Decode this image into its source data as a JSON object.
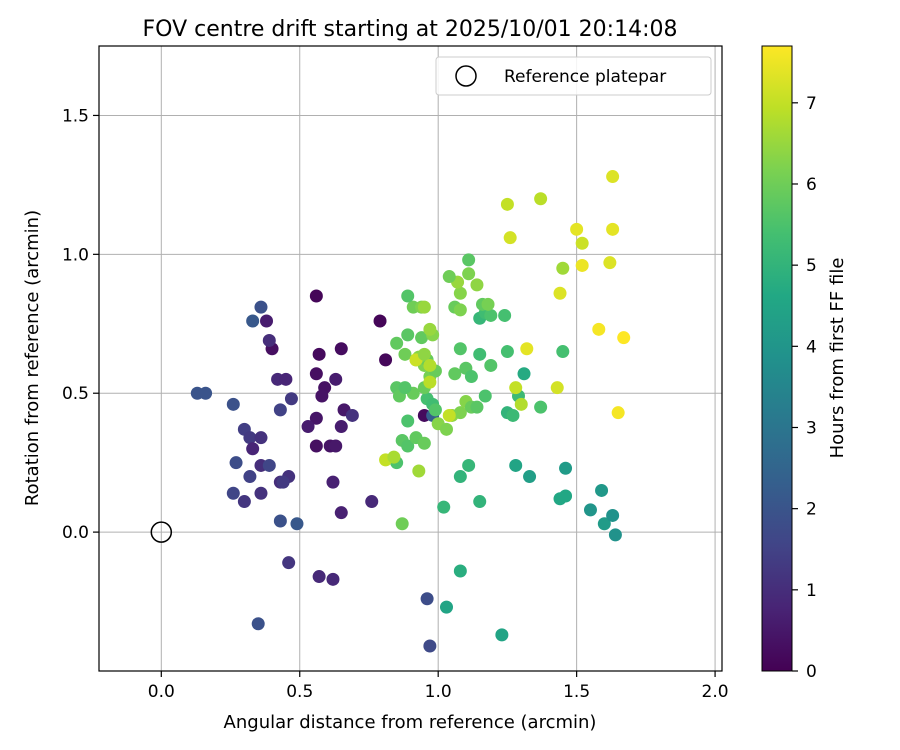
{
  "chart_data": {
    "type": "scatter",
    "title": "FOV centre drift starting at 2025/10/01 20:14:08",
    "xlabel": "Angular distance from reference (arcmin)",
    "ylabel": "Rotation from reference (arcmin)",
    "xlim": [
      -0.225,
      2.025
    ],
    "ylim": [
      -0.5,
      1.75
    ],
    "xticks": [
      0.0,
      0.5,
      1.0,
      1.5,
      2.0
    ],
    "xtick_labels": [
      "0.0",
      "0.5",
      "1.0",
      "1.5",
      "2.0"
    ],
    "yticks": [
      0.0,
      0.5,
      1.0,
      1.5
    ],
    "ytick_labels": [
      "0.0",
      "0.5",
      "1.0",
      "1.5"
    ],
    "grid": true,
    "legend": {
      "position": "top-right",
      "entries": [
        {
          "label": "Reference platepar",
          "marker": "open-circle"
        }
      ]
    },
    "reference_point": {
      "x": 0.0,
      "y": 0.0
    },
    "colorbar": {
      "label": "Hours from first FF file",
      "range": [
        0,
        7.7
      ],
      "ticks": [
        0,
        1,
        2,
        3,
        4,
        5,
        6,
        7
      ],
      "tick_labels": [
        "0",
        "1",
        "2",
        "3",
        "4",
        "5",
        "6",
        "7"
      ],
      "colormap": "viridis"
    },
    "points": [
      {
        "x": 0.56,
        "y": 0.85,
        "t": 0.1
      },
      {
        "x": 0.79,
        "y": 0.76,
        "t": 0.1
      },
      {
        "x": 0.81,
        "y": 0.62,
        "t": 0.15
      },
      {
        "x": 0.57,
        "y": 0.64,
        "t": 0.2
      },
      {
        "x": 0.65,
        "y": 0.66,
        "t": 0.25
      },
      {
        "x": 0.56,
        "y": 0.57,
        "t": 0.3
      },
      {
        "x": 0.59,
        "y": 0.52,
        "t": 0.35
      },
      {
        "x": 0.58,
        "y": 0.49,
        "t": 0.4
      },
      {
        "x": 0.56,
        "y": 0.41,
        "t": 0.45
      },
      {
        "x": 0.66,
        "y": 0.44,
        "t": 0.5
      },
      {
        "x": 0.56,
        "y": 0.31,
        "t": 0.3
      },
      {
        "x": 0.61,
        "y": 0.31,
        "t": 0.4
      },
      {
        "x": 0.63,
        "y": 0.31,
        "t": 0.5
      },
      {
        "x": 0.65,
        "y": 0.38,
        "t": 0.6
      },
      {
        "x": 0.63,
        "y": 0.55,
        "t": 0.6
      },
      {
        "x": 0.53,
        "y": 0.38,
        "t": 0.6
      },
      {
        "x": 0.62,
        "y": 0.18,
        "t": 0.7
      },
      {
        "x": 0.65,
        "y": 0.07,
        "t": 0.7
      },
      {
        "x": 0.57,
        "y": -0.16,
        "t": 0.9
      },
      {
        "x": 0.62,
        "y": -0.17,
        "t": 0.9
      },
      {
        "x": 0.76,
        "y": 0.11,
        "t": 0.9
      },
      {
        "x": 0.69,
        "y": 0.42,
        "t": 1.1
      },
      {
        "x": 0.95,
        "y": 0.42,
        "t": 0.2
      },
      {
        "x": 0.4,
        "y": 0.66,
        "t": 0.3
      },
      {
        "x": 0.38,
        "y": 0.76,
        "t": 0.6
      },
      {
        "x": 0.39,
        "y": 0.69,
        "t": 1.0
      },
      {
        "x": 0.42,
        "y": 0.55,
        "t": 0.9
      },
      {
        "x": 0.45,
        "y": 0.55,
        "t": 0.8
      },
      {
        "x": 0.47,
        "y": 0.48,
        "t": 1.3
      },
      {
        "x": 0.43,
        "y": 0.44,
        "t": 1.5
      },
      {
        "x": 0.3,
        "y": 0.37,
        "t": 1.4
      },
      {
        "x": 0.32,
        "y": 0.34,
        "t": 1.3
      },
      {
        "x": 0.36,
        "y": 0.34,
        "t": 1.1
      },
      {
        "x": 0.33,
        "y": 0.3,
        "t": 0.8
      },
      {
        "x": 0.36,
        "y": 0.24,
        "t": 1.0
      },
      {
        "x": 0.39,
        "y": 0.24,
        "t": 1.6
      },
      {
        "x": 0.43,
        "y": 0.18,
        "t": 1.0
      },
      {
        "x": 0.46,
        "y": 0.2,
        "t": 1.1
      },
      {
        "x": 0.44,
        "y": 0.18,
        "t": 1.3
      },
      {
        "x": 0.32,
        "y": 0.2,
        "t": 1.5
      },
      {
        "x": 0.36,
        "y": 0.14,
        "t": 1.1
      },
      {
        "x": 0.3,
        "y": 0.11,
        "t": 1.2
      },
      {
        "x": 0.26,
        "y": 0.14,
        "t": 1.6
      },
      {
        "x": 0.27,
        "y": 0.25,
        "t": 1.8
      },
      {
        "x": 0.26,
        "y": 0.46,
        "t": 1.9
      },
      {
        "x": 0.13,
        "y": 0.5,
        "t": 2.0
      },
      {
        "x": 0.16,
        "y": 0.5,
        "t": 2.0
      },
      {
        "x": 0.36,
        "y": 0.81,
        "t": 1.9
      },
      {
        "x": 0.33,
        "y": 0.76,
        "t": 2.1
      },
      {
        "x": 0.43,
        "y": 0.04,
        "t": 1.9
      },
      {
        "x": 0.49,
        "y": 0.03,
        "t": 2.1
      },
      {
        "x": 0.46,
        "y": -0.11,
        "t": 1.2
      },
      {
        "x": 0.35,
        "y": -0.33,
        "t": 1.9
      },
      {
        "x": 0.96,
        "y": -0.24,
        "t": 1.8
      },
      {
        "x": 0.97,
        "y": -0.41,
        "t": 1.7
      },
      {
        "x": 0.98,
        "y": 0.42,
        "t": 2.3
      },
      {
        "x": 1.03,
        "y": -0.27,
        "t": 4.5
      },
      {
        "x": 1.08,
        "y": -0.14,
        "t": 4.8
      },
      {
        "x": 1.23,
        "y": -0.37,
        "t": 4.5
      },
      {
        "x": 0.87,
        "y": 0.03,
        "t": 6.0
      },
      {
        "x": 1.02,
        "y": 0.09,
        "t": 5.1
      },
      {
        "x": 1.08,
        "y": 0.2,
        "t": 5.0
      },
      {
        "x": 1.11,
        "y": 0.24,
        "t": 5.1
      },
      {
        "x": 1.15,
        "y": 0.11,
        "t": 5.0
      },
      {
        "x": 1.28,
        "y": 0.24,
        "t": 4.5
      },
      {
        "x": 1.33,
        "y": 0.2,
        "t": 4.3
      },
      {
        "x": 1.44,
        "y": 0.12,
        "t": 4.6
      },
      {
        "x": 1.46,
        "y": 0.13,
        "t": 4.6
      },
      {
        "x": 1.46,
        "y": 0.23,
        "t": 4.2
      },
      {
        "x": 1.55,
        "y": 0.08,
        "t": 4.0
      },
      {
        "x": 1.59,
        "y": 0.15,
        "t": 4.1
      },
      {
        "x": 1.6,
        "y": 0.03,
        "t": 4.2
      },
      {
        "x": 1.63,
        "y": 0.06,
        "t": 3.9
      },
      {
        "x": 1.64,
        "y": -0.01,
        "t": 3.9
      },
      {
        "x": 0.85,
        "y": 0.25,
        "t": 5.5
      },
      {
        "x": 0.87,
        "y": 0.33,
        "t": 5.7
      },
      {
        "x": 0.89,
        "y": 0.31,
        "t": 5.6
      },
      {
        "x": 0.92,
        "y": 0.34,
        "t": 5.8
      },
      {
        "x": 0.95,
        "y": 0.32,
        "t": 5.9
      },
      {
        "x": 0.89,
        "y": 0.4,
        "t": 5.5
      },
      {
        "x": 0.91,
        "y": 0.5,
        "t": 5.9
      },
      {
        "x": 0.85,
        "y": 0.52,
        "t": 5.7
      },
      {
        "x": 0.86,
        "y": 0.49,
        "t": 5.8
      },
      {
        "x": 0.88,
        "y": 0.52,
        "t": 5.6
      },
      {
        "x": 0.96,
        "y": 0.48,
        "t": 5.4
      },
      {
        "x": 0.98,
        "y": 0.46,
        "t": 5.3
      },
      {
        "x": 0.99,
        "y": 0.44,
        "t": 5.6
      },
      {
        "x": 0.95,
        "y": 0.52,
        "t": 5.9
      },
      {
        "x": 0.97,
        "y": 0.56,
        "t": 6.1
      },
      {
        "x": 0.95,
        "y": 0.6,
        "t": 6.2
      },
      {
        "x": 0.96,
        "y": 0.62,
        "t": 5.9
      },
      {
        "x": 0.93,
        "y": 0.63,
        "t": 6.3
      },
      {
        "x": 0.92,
        "y": 0.62,
        "t": 6.4
      },
      {
        "x": 0.88,
        "y": 0.64,
        "t": 6.0
      },
      {
        "x": 0.85,
        "y": 0.68,
        "t": 5.8
      },
      {
        "x": 0.89,
        "y": 0.71,
        "t": 5.7
      },
      {
        "x": 0.94,
        "y": 0.7,
        "t": 5.8
      },
      {
        "x": 0.98,
        "y": 0.71,
        "t": 6.3
      },
      {
        "x": 0.97,
        "y": 0.73,
        "t": 6.5
      },
      {
        "x": 0.91,
        "y": 0.81,
        "t": 6.0
      },
      {
        "x": 0.94,
        "y": 0.81,
        "t": 6.2
      },
      {
        "x": 0.95,
        "y": 0.81,
        "t": 6.5
      },
      {
        "x": 0.89,
        "y": 0.85,
        "t": 5.6
      },
      {
        "x": 0.99,
        "y": 0.58,
        "t": 5.9
      },
      {
        "x": 1.0,
        "y": 0.39,
        "t": 6.3
      },
      {
        "x": 1.03,
        "y": 0.37,
        "t": 6.2
      },
      {
        "x": 1.05,
        "y": 0.42,
        "t": 6.4
      },
      {
        "x": 1.08,
        "y": 0.43,
        "t": 6.2
      },
      {
        "x": 1.1,
        "y": 0.47,
        "t": 6.3
      },
      {
        "x": 1.12,
        "y": 0.45,
        "t": 5.9
      },
      {
        "x": 1.14,
        "y": 0.45,
        "t": 5.7
      },
      {
        "x": 1.17,
        "y": 0.49,
        "t": 5.5
      },
      {
        "x": 1.06,
        "y": 0.57,
        "t": 5.8
      },
      {
        "x": 1.1,
        "y": 0.59,
        "t": 5.7
      },
      {
        "x": 1.12,
        "y": 0.56,
        "t": 5.5
      },
      {
        "x": 1.08,
        "y": 0.66,
        "t": 5.6
      },
      {
        "x": 1.15,
        "y": 0.64,
        "t": 5.3
      },
      {
        "x": 1.19,
        "y": 0.6,
        "t": 5.6
      },
      {
        "x": 1.25,
        "y": 0.65,
        "t": 5.4
      },
      {
        "x": 1.31,
        "y": 0.57,
        "t": 4.7
      },
      {
        "x": 1.29,
        "y": 0.49,
        "t": 5.2
      },
      {
        "x": 1.25,
        "y": 0.43,
        "t": 5.0
      },
      {
        "x": 1.27,
        "y": 0.42,
        "t": 5.2
      },
      {
        "x": 1.37,
        "y": 0.45,
        "t": 5.5
      },
      {
        "x": 1.45,
        "y": 0.65,
        "t": 5.4
      },
      {
        "x": 1.3,
        "y": 0.46,
        "t": 6.8
      },
      {
        "x": 1.28,
        "y": 0.52,
        "t": 7.0
      },
      {
        "x": 1.32,
        "y": 0.66,
        "t": 7.4
      },
      {
        "x": 1.43,
        "y": 0.52,
        "t": 7.2
      },
      {
        "x": 1.15,
        "y": 0.77,
        "t": 5.1
      },
      {
        "x": 1.17,
        "y": 0.79,
        "t": 5.3
      },
      {
        "x": 1.19,
        "y": 0.78,
        "t": 5.5
      },
      {
        "x": 1.16,
        "y": 0.82,
        "t": 5.8
      },
      {
        "x": 1.18,
        "y": 0.82,
        "t": 6.1
      },
      {
        "x": 1.24,
        "y": 0.78,
        "t": 5.4
      },
      {
        "x": 1.06,
        "y": 0.81,
        "t": 5.9
      },
      {
        "x": 1.08,
        "y": 0.8,
        "t": 6.2
      },
      {
        "x": 1.08,
        "y": 0.86,
        "t": 6.3
      },
      {
        "x": 1.07,
        "y": 0.9,
        "t": 6.5
      },
      {
        "x": 1.04,
        "y": 0.92,
        "t": 6.0
      },
      {
        "x": 1.11,
        "y": 0.93,
        "t": 6.2
      },
      {
        "x": 1.11,
        "y": 0.98,
        "t": 5.7
      },
      {
        "x": 1.14,
        "y": 0.89,
        "t": 6.4
      },
      {
        "x": 1.26,
        "y": 1.06,
        "t": 7.2
      },
      {
        "x": 1.25,
        "y": 1.18,
        "t": 7.0
      },
      {
        "x": 1.37,
        "y": 1.2,
        "t": 6.9
      },
      {
        "x": 1.45,
        "y": 0.95,
        "t": 6.6
      },
      {
        "x": 1.44,
        "y": 0.86,
        "t": 7.3
      },
      {
        "x": 1.5,
        "y": 1.09,
        "t": 7.4
      },
      {
        "x": 1.52,
        "y": 1.04,
        "t": 7.1
      },
      {
        "x": 1.52,
        "y": 0.96,
        "t": 7.5
      },
      {
        "x": 1.62,
        "y": 0.97,
        "t": 7.3
      },
      {
        "x": 1.63,
        "y": 1.09,
        "t": 7.4
      },
      {
        "x": 1.63,
        "y": 1.28,
        "t": 7.3
      },
      {
        "x": 1.58,
        "y": 0.73,
        "t": 7.6
      },
      {
        "x": 1.67,
        "y": 0.7,
        "t": 7.7
      },
      {
        "x": 1.65,
        "y": 0.43,
        "t": 7.6
      },
      {
        "x": 0.81,
        "y": 0.26,
        "t": 7.0
      },
      {
        "x": 0.84,
        "y": 0.27,
        "t": 6.7
      },
      {
        "x": 0.93,
        "y": 0.22,
        "t": 6.6
      },
      {
        "x": 0.97,
        "y": 0.54,
        "t": 6.9
      },
      {
        "x": 0.92,
        "y": 0.62,
        "t": 7.1
      },
      {
        "x": 0.95,
        "y": 0.64,
        "t": 6.4
      },
      {
        "x": 0.97,
        "y": 0.6,
        "t": 6.8
      },
      {
        "x": 1.04,
        "y": 0.42,
        "t": 7.0
      }
    ]
  }
}
